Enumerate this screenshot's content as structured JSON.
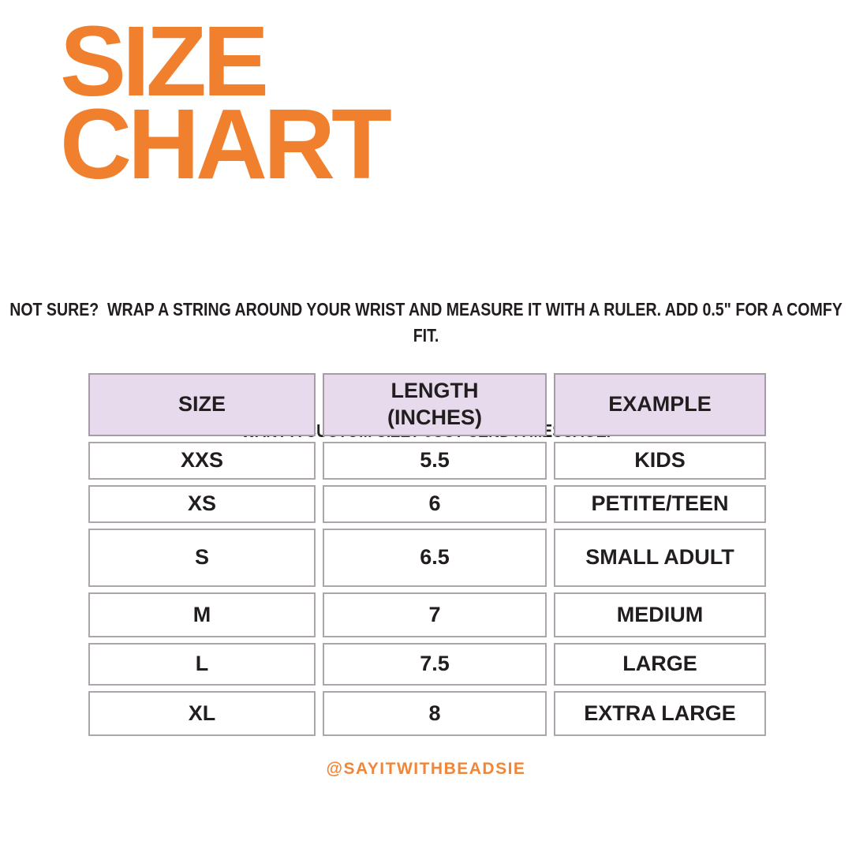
{
  "title": {
    "line1": "SIZE",
    "line2": "CHART"
  },
  "intro": {
    "measure_tip": "NOT SURE?  WRAP A STRING AROUND YOUR WRIST AND MEASURE IT WITH A RULER. ADD 0.5\" FOR A COMFY FIT.",
    "custom_size": "WANT A CUSTOM SIZE? JUST SEND A MESSAGE."
  },
  "table": {
    "headers": [
      "SIZE",
      "LENGTH\n(INCHES)",
      "EXAMPLE"
    ],
    "rows": [
      [
        "XXS",
        "5.5",
        "KIDS"
      ],
      [
        "XS",
        "6",
        "PETITE/TEEN"
      ],
      [
        "S",
        "6.5",
        "SMALL ADULT"
      ],
      [
        "M",
        "7",
        "MEDIUM"
      ],
      [
        "L",
        "7.5",
        "LARGE"
      ],
      [
        "XL",
        "8",
        "EXTRA LARGE"
      ]
    ]
  },
  "footer": {
    "handle": "@SAYITWITHBEADSIE"
  },
  "colors": {
    "accent-orange": "#F0802D",
    "footer-orange": "#F18538",
    "header-bg": "#E7DAEC",
    "border-gray": "#ACA6AC",
    "text-dark": "#221E1F",
    "bg": "#FFFFFF"
  },
  "chart_data": {
    "type": "table",
    "title": "SIZE CHART",
    "columns": [
      "SIZE",
      "LENGTH (INCHES)",
      "EXAMPLE"
    ],
    "rows": [
      [
        "XXS",
        "5.5",
        "KIDS"
      ],
      [
        "XS",
        "6",
        "PETITE/TEEN"
      ],
      [
        "S",
        "6.5",
        "SMALL ADULT"
      ],
      [
        "M",
        "7",
        "MEDIUM"
      ],
      [
        "L",
        "7.5",
        "LARGE"
      ],
      [
        "XL",
        "8",
        "EXTRA LARGE"
      ]
    ],
    "notes": [
      "NOT SURE?  WRAP A STRING AROUND YOUR WRIST AND MEASURE IT WITH A RULER. ADD 0.5\" FOR A COMFY FIT.",
      "WANT A CUSTOM SIZE? JUST SEND A MESSAGE."
    ],
    "units": "inches"
  }
}
